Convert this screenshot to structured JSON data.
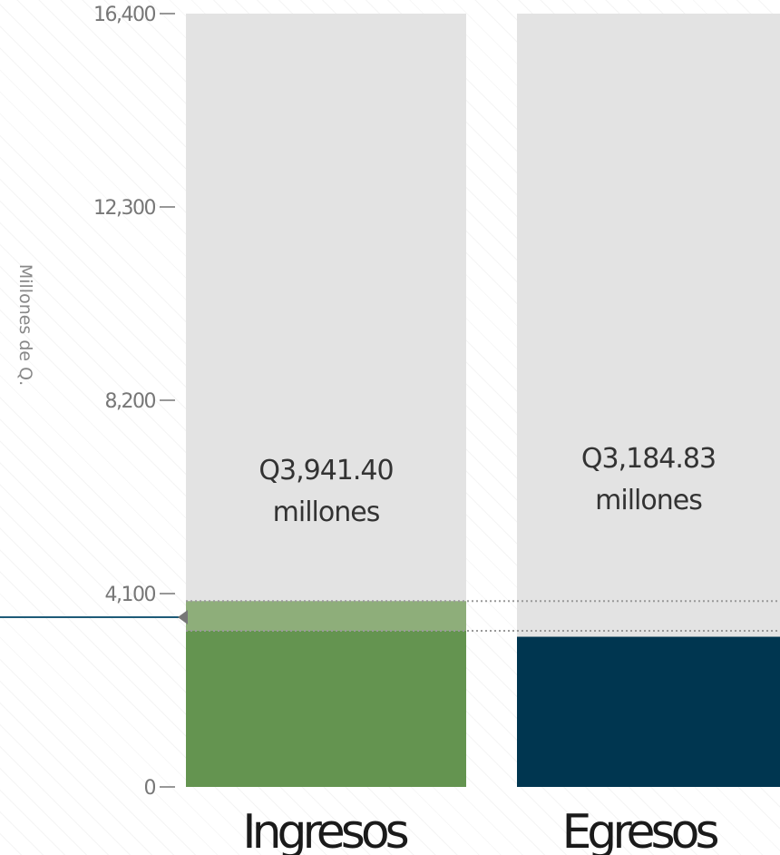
{
  "chart_data": {
    "type": "bar",
    "ylabel": "Millones de Q.",
    "ylim": [
      0,
      16400
    ],
    "yticks": [
      {
        "value": 0,
        "label": "0"
      },
      {
        "value": 4100,
        "label": "4,100"
      },
      {
        "value": 8200,
        "label": "8,200"
      },
      {
        "value": 12300,
        "label": "12,300"
      },
      {
        "value": 16400,
        "label": "16,400"
      }
    ],
    "categories": [
      "Ingresos",
      "Egresos"
    ],
    "values": [
      3941.4,
      3184.83
    ],
    "value_labels": [
      [
        "Q3,941.40",
        "millones"
      ],
      [
        "Q3,184.83",
        "millones"
      ]
    ],
    "colors": {
      "ingresos": "#649450",
      "ingresos_light": "#8eae7a",
      "egresos": "#003650",
      "background_bar": "#e3e3e3",
      "marker_line": "#1e5b78"
    },
    "marker_value": 3600,
    "grid": false
  }
}
